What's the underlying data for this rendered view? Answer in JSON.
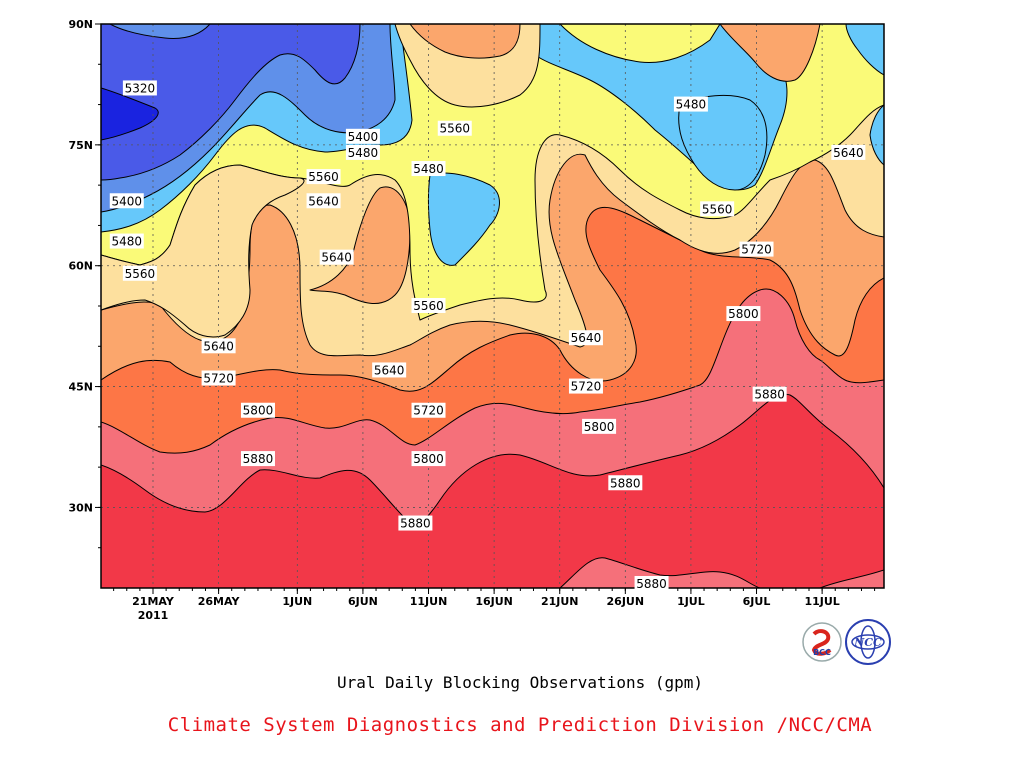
{
  "chart_data": {
    "type": "contour",
    "title": "Ural Daily Blocking Observations (gpm)",
    "xlabel": "",
    "ylabel": "",
    "x_ticks": [
      "21MAY",
      "26MAY",
      "1JUN",
      "6JUN",
      "11JUN",
      "16JUN",
      "21JUN",
      "26JUN",
      "1JUL",
      "6JUL",
      "11JUL"
    ],
    "x_year_label": "2011",
    "y_ticks": [
      "30N",
      "45N",
      "60N",
      "75N",
      "90N"
    ],
    "ylim": [
      20,
      90
    ],
    "grid": true,
    "contour_levels": [
      5320,
      5400,
      5480,
      5560,
      5640,
      5720,
      5800,
      5880
    ],
    "fill_colors": [
      "#1a23e0",
      "#4a5ae8",
      "#5f90ea",
      "#66c8fa",
      "#fafa78",
      "#fde09e",
      "#fba66c",
      "#fd7646",
      "#f5707a",
      "#f23848"
    ],
    "contour_labels": [
      {
        "value": "5320",
        "x": "20MAY",
        "y": 82
      },
      {
        "value": "5400",
        "x": "19MAY",
        "y": 68
      },
      {
        "value": "5480",
        "x": "19MAY",
        "y": 63
      },
      {
        "value": "5560",
        "x": "20MAY",
        "y": 59
      },
      {
        "value": "5400",
        "x": "6JUN",
        "y": 76
      },
      {
        "value": "5480",
        "x": "6JUN",
        "y": 74
      },
      {
        "value": "5560",
        "x": "3JUN",
        "y": 71
      },
      {
        "value": "5640",
        "x": "3JUN",
        "y": 68
      },
      {
        "value": "5640",
        "x": "4JUN",
        "y": 61
      },
      {
        "value": "5560",
        "x": "13JUN",
        "y": 77
      },
      {
        "value": "5480",
        "x": "11JUN",
        "y": 72
      },
      {
        "value": "5560",
        "x": "11JUN",
        "y": 55
      },
      {
        "value": "5640",
        "x": "26MAY",
        "y": 50
      },
      {
        "value": "5640",
        "x": "8JUN",
        "y": 47
      },
      {
        "value": "5720",
        "x": "26MAY",
        "y": 46
      },
      {
        "value": "5720",
        "x": "11JUN",
        "y": 42
      },
      {
        "value": "5800",
        "x": "29MAY",
        "y": 42
      },
      {
        "value": "5800",
        "x": "11JUN",
        "y": 36
      },
      {
        "value": "5880",
        "x": "29MAY",
        "y": 36
      },
      {
        "value": "5880",
        "x": "10JUN",
        "y": 28
      },
      {
        "value": "5640",
        "x": "23JUN",
        "y": 51
      },
      {
        "value": "5720",
        "x": "23JUN",
        "y": 45
      },
      {
        "value": "5800",
        "x": "24JUN",
        "y": 40
      },
      {
        "value": "5880",
        "x": "26JUN",
        "y": 33
      },
      {
        "value": "5880",
        "x": "28JUN",
        "y": 20
      },
      {
        "value": "5480",
        "x": "1JUL",
        "y": 80
      },
      {
        "value": "5560",
        "x": "3JUL",
        "y": 67
      },
      {
        "value": "5720",
        "x": "6JUL",
        "y": 62
      },
      {
        "value": "5800",
        "x": "5JUL",
        "y": 54
      },
      {
        "value": "5880",
        "x": "7JUL",
        "y": 44
      },
      {
        "value": "5640",
        "x": "13JUL",
        "y": 74
      }
    ]
  },
  "credit": "Climate System Diagnostics and Prediction Division /NCC/CMA",
  "logos": [
    {
      "name": "bcc-logo",
      "text": "BCC",
      "color": "#1f3fa8",
      "accent": "#d9251d"
    },
    {
      "name": "ncc-logo",
      "text": "NCC",
      "color": "#2a3fb0"
    }
  ]
}
